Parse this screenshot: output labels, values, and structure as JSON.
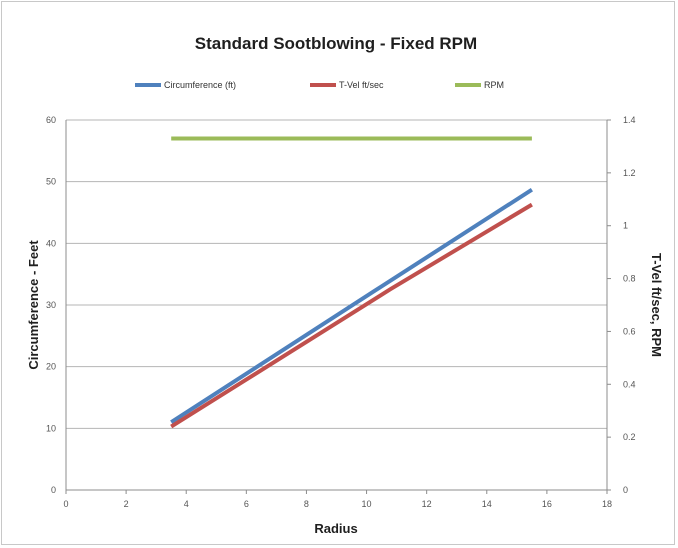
{
  "chart_data": {
    "type": "line",
    "title": "Standard Sootblowing - Fixed RPM",
    "xlabel": "Radius",
    "ylabel": "Circumference - Feet",
    "y2label": "T-Vel ft/sec, RPM",
    "xlim": [
      0,
      18
    ],
    "ylim": [
      0,
      60
    ],
    "y2lim": [
      0,
      1.4
    ],
    "x_ticks": [
      "0",
      "2",
      "4",
      "6",
      "8",
      "10",
      "12",
      "14",
      "16",
      "18"
    ],
    "y_ticks": [
      "0",
      "10",
      "20",
      "30",
      "40",
      "50",
      "60"
    ],
    "y2_ticks": [
      "0",
      "0.2",
      "0.4",
      "0.6",
      "0.8",
      "1",
      "1.2",
      "1.4"
    ],
    "grid": true,
    "legend_position": "top",
    "series": [
      {
        "name": "Circumference (ft)",
        "axis": "left",
        "color": "#4f81bd",
        "x": [
          3.5,
          10.3,
          15.5
        ],
        "y": [
          11.0,
          32.4,
          48.7
        ]
      },
      {
        "name": "T-Vel ft/sec",
        "axis": "right",
        "color": "#c0504d",
        "x": [
          3.5,
          10.8,
          15.5
        ],
        "y": [
          0.24,
          0.76,
          1.08
        ]
      },
      {
        "name": "RPM",
        "axis": "right",
        "color": "#9bbb59",
        "x": [
          3.5,
          15.5
        ],
        "y": [
          1.33,
          1.33
        ]
      }
    ]
  }
}
